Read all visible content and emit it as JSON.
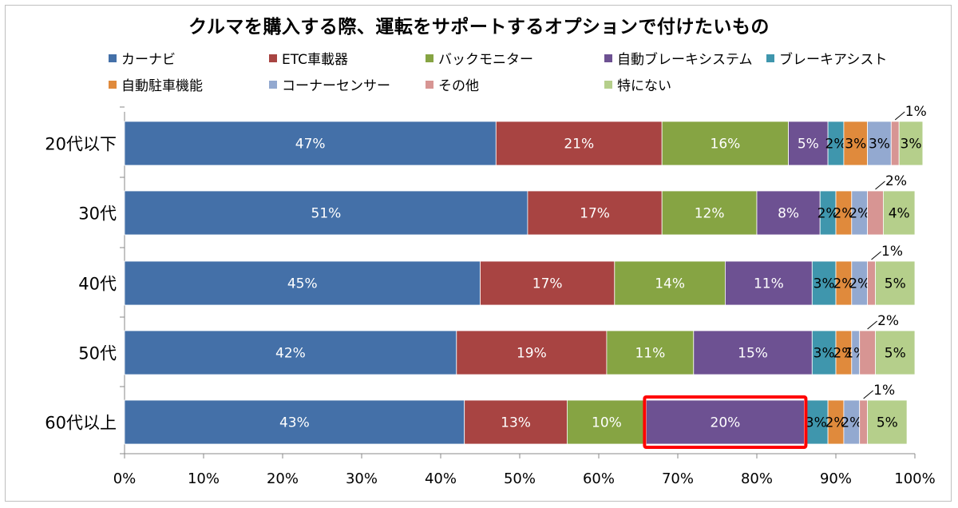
{
  "chart_data": {
    "type": "bar",
    "orientation": "horizontal",
    "stacked": true,
    "title": "クルマを購入する際、運転をサポートするオプションで付けたいもの",
    "categories": [
      "20代以下",
      "30代",
      "40代",
      "50代",
      "60代以上"
    ],
    "xlim": [
      0,
      100
    ],
    "xticks": [
      "0%",
      "10%",
      "20%",
      "30%",
      "40%",
      "50%",
      "60%",
      "70%",
      "80%",
      "90%",
      "100%"
    ],
    "legend_position": "top",
    "grid": false,
    "highlight": {
      "category": "60代以上",
      "series": "自動ブレーキシステム",
      "color": "#ff0000"
    },
    "series": [
      {
        "name": "カーナビ",
        "color": "#4470a8",
        "values": [
          47,
          51,
          45,
          42,
          43
        ]
      },
      {
        "name": "ETC車載器",
        "color": "#a84442",
        "values": [
          21,
          17,
          17,
          19,
          13
        ]
      },
      {
        "name": "バックモニター",
        "color": "#86a443",
        "values": [
          16,
          12,
          14,
          11,
          10
        ]
      },
      {
        "name": "自動ブレーキシステム",
        "color": "#6d5192",
        "values": [
          5,
          8,
          11,
          15,
          20
        ]
      },
      {
        "name": "ブレーキアシスト",
        "color": "#3f96ad",
        "values": [
          2,
          2,
          3,
          3,
          3
        ]
      },
      {
        "name": "自動駐車機能",
        "color": "#e08a3c",
        "values": [
          3,
          2,
          2,
          2,
          2
        ]
      },
      {
        "name": "コーナーセンサー",
        "color": "#93a9d0",
        "values": [
          3,
          2,
          2,
          1,
          2
        ]
      },
      {
        "name": "その他",
        "color": "#d79593",
        "values": [
          1,
          2,
          1,
          2,
          1
        ]
      },
      {
        "name": "特にない",
        "color": "#b5cf8b",
        "values": [
          3,
          4,
          5,
          5,
          5
        ]
      }
    ],
    "data_labels": [
      [
        "47%",
        "21%",
        "16%",
        "5%",
        "2%",
        "3%",
        "3%",
        "1%",
        "3%"
      ],
      [
        "51%",
        "17%",
        "12%",
        "8%",
        "2%",
        "2%",
        "2%",
        "2%",
        "4%"
      ],
      [
        "45%",
        "17%",
        "14%",
        "11%",
        "3%",
        "2%",
        "2%",
        "1%",
        "5%"
      ],
      [
        "42%",
        "19%",
        "11%",
        "15%",
        "3%",
        "2%",
        "1%",
        "2%",
        "5%"
      ],
      [
        "43%",
        "13%",
        "10%",
        "20%",
        "3%",
        "2%",
        "2%",
        "1%",
        "5%"
      ]
    ]
  }
}
